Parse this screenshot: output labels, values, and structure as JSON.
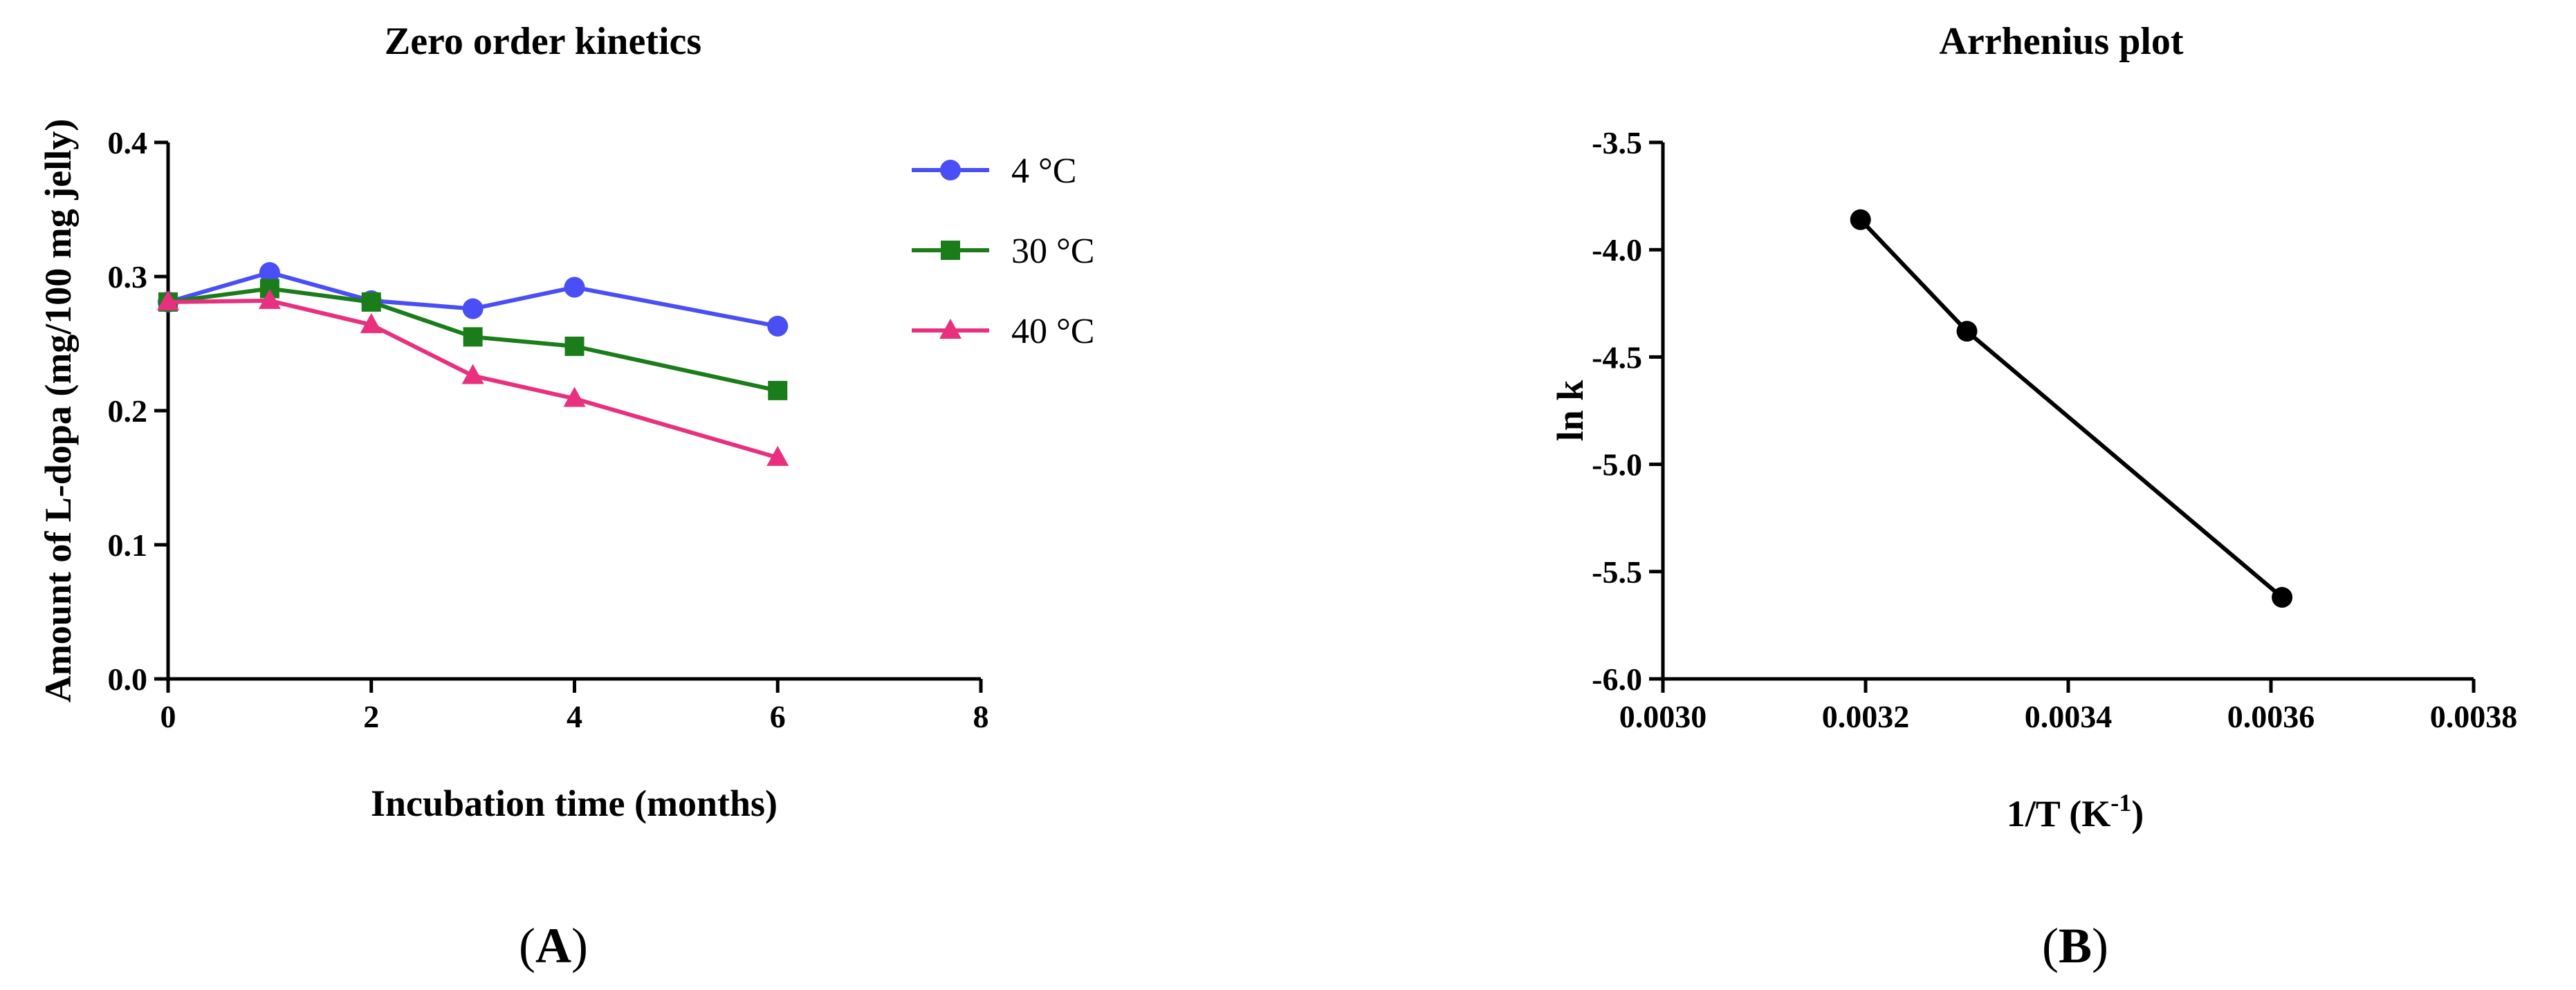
{
  "chart_data": [
    {
      "type": "line",
      "title": "Zero order kinetics",
      "xlabel": "Incubation time (months)",
      "ylabel": "Amount of L-dopa (mg/100 mg jelly)",
      "xlim": [
        0,
        8
      ],
      "ylim": [
        0,
        0.4
      ],
      "xticks": [
        "0",
        "2",
        "4",
        "6",
        "8"
      ],
      "yticks": [
        "0.0",
        "0.1",
        "0.2",
        "0.3",
        "0.4"
      ],
      "legend_position": "right",
      "grid": false,
      "panel_label": {
        "open": "(",
        "letter": "A",
        "close": ")"
      },
      "series": [
        {
          "name": "4 °C",
          "color": "#4a4ef5",
          "marker": "circle",
          "x": [
            0,
            1,
            2,
            3,
            4,
            6
          ],
          "y": [
            0.281,
            0.303,
            0.282,
            0.276,
            0.292,
            0.263
          ]
        },
        {
          "name": "30 °C",
          "color": "#1a7d1a",
          "marker": "square",
          "x": [
            0,
            1,
            2,
            3,
            4,
            6
          ],
          "y": [
            0.281,
            0.291,
            0.281,
            0.255,
            0.248,
            0.215
          ]
        },
        {
          "name": "40 °C",
          "color": "#e8307e",
          "marker": "triangle",
          "x": [
            0,
            1,
            2,
            3,
            4,
            6
          ],
          "y": [
            0.281,
            0.282,
            0.264,
            0.226,
            0.209,
            0.165
          ]
        }
      ]
    },
    {
      "type": "line",
      "title": "Arrhenius plot",
      "xlabel_main": "1/T (K",
      "xlabel_sup": "-1",
      "xlabel_end": ")",
      "ylabel": "ln k",
      "xlim": [
        0.003,
        0.0038
      ],
      "ylim": [
        -6.0,
        -3.5
      ],
      "xticks": [
        "0.0030",
        "0.0032",
        "0.0034",
        "0.0036",
        "0.0038"
      ],
      "yticks": [
        "-6.0",
        "-5.5",
        "-5.0",
        "-4.5",
        "-4.0",
        "-3.5"
      ],
      "grid": false,
      "panel_label": {
        "open": "(",
        "letter": "B",
        "close": ")"
      },
      "series": [
        {
          "color": "#000000",
          "marker": "circle",
          "x": [
            0.003195,
            0.0033,
            0.003611
          ],
          "y": [
            -3.86,
            -4.38,
            -5.62
          ]
        }
      ]
    }
  ]
}
